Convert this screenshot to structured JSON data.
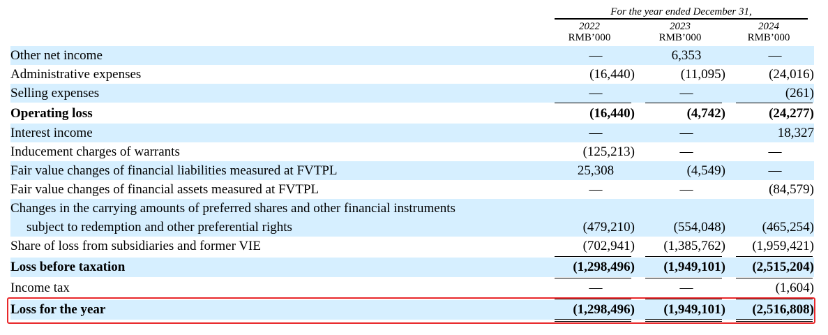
{
  "header": {
    "period": "For the year ended December 31,",
    "columns": [
      {
        "year": "2022",
        "unit": "RMB’000"
      },
      {
        "year": "2023",
        "unit": "RMB’000"
      },
      {
        "year": "2024",
        "unit": "RMB’000"
      }
    ]
  },
  "rows": [
    {
      "label": "Other net income",
      "values": [
        "—",
        "6,353",
        "—"
      ]
    },
    {
      "label": "Administrative expenses",
      "values": [
        "(16,440)",
        "(11,095)",
        "(24,016)"
      ]
    },
    {
      "label": "Selling expenses",
      "values": [
        "—",
        "—",
        "(261)"
      ]
    },
    {
      "label": "Operating loss",
      "values": [
        "(16,440)",
        "(4,742)",
        "(24,277)"
      ]
    },
    {
      "label": "Interest income",
      "values": [
        "—",
        "—",
        "18,327"
      ]
    },
    {
      "label": "Inducement charges of warrants",
      "values": [
        "(125,213)",
        "—",
        "—"
      ]
    },
    {
      "label": "Fair value changes of financial liabilities measured at FVTPL",
      "values": [
        "25,308",
        "(4,549)",
        "—"
      ]
    },
    {
      "label": "Fair value changes of financial assets measured at FVTPL",
      "values": [
        "—",
        "—",
        "(84,579)"
      ]
    },
    {
      "label": "Changes in the carrying amounts of preferred shares and other financial instruments",
      "label_cont": "subject to redemption and other preferential rights",
      "values": [
        "(479,210)",
        "(554,048)",
        "(465,254)"
      ]
    },
    {
      "label": "Share of loss from subsidiaries and former VIE",
      "values": [
        "(702,941)",
        "(1,385,762)",
        "(1,959,421)"
      ]
    },
    {
      "label": "Loss before taxation",
      "values": [
        "(1,298,496)",
        "(1,949,101)",
        "(2,515,204)"
      ]
    },
    {
      "label": "Income tax",
      "values": [
        "—",
        "—",
        "(1,604)"
      ]
    },
    {
      "label": "Loss for the year",
      "values": [
        "(1,298,496)",
        "(1,949,101)",
        "(2,516,808)"
      ]
    }
  ],
  "colors": {
    "shading": "#d6efff",
    "highlight": "#e8272a"
  }
}
